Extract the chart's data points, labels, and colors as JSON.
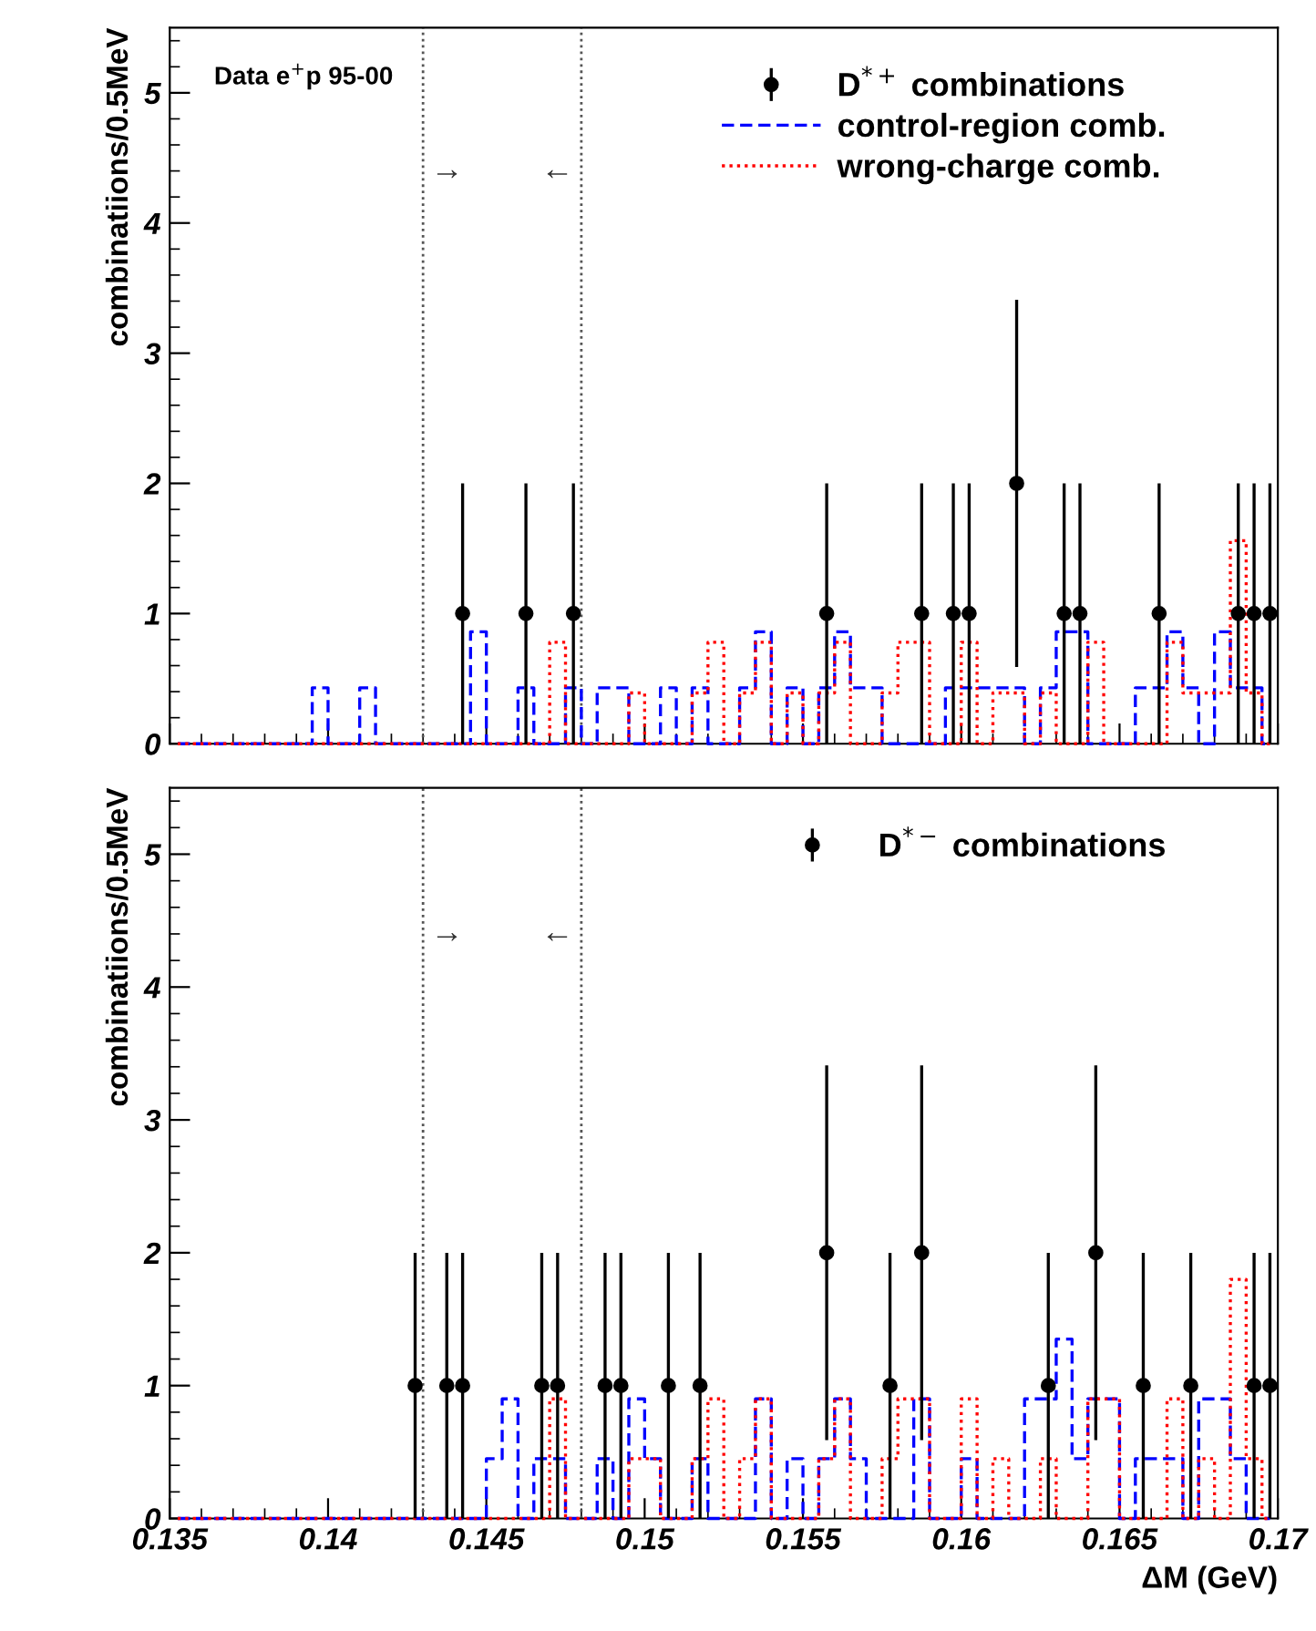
{
  "chart_data": [
    {
      "type": "step",
      "ylabel": "combinatiions/0.5MeV",
      "tick_labels": "y",
      "legend": "top right",
      "grid": false,
      "xlim": [
        0.135,
        0.17
      ],
      "xticks": [
        0.135,
        0.14,
        0.145,
        0.15,
        0.155,
        0.16,
        0.165,
        0.17
      ],
      "ylim": [
        0,
        5.5
      ],
      "yticks": [
        0,
        1,
        2,
        3,
        4,
        5
      ],
      "x": [
        0.13525,
        0.13575,
        0.13625,
        0.13675,
        0.13725,
        0.13775,
        0.13825,
        0.13875,
        0.13925,
        0.13975,
        0.14025,
        0.14075,
        0.14125,
        0.14175,
        0.14225,
        0.14275,
        0.14325,
        0.14375,
        0.14425,
        0.14475,
        0.14525,
        0.14575,
        0.14625,
        0.14675,
        0.14725,
        0.14775,
        0.14825,
        0.14875,
        0.14925,
        0.14975,
        0.15025,
        0.15075,
        0.15125,
        0.15175,
        0.15225,
        0.15275,
        0.15325,
        0.15375,
        0.15425,
        0.15475,
        0.15525,
        0.15575,
        0.15625,
        0.15675,
        0.15725,
        0.15775,
        0.15825,
        0.15875,
        0.15925,
        0.15975,
        0.16025,
        0.16075,
        0.16125,
        0.16175,
        0.16225,
        0.16275,
        0.16325,
        0.16375,
        0.16425,
        0.16475,
        0.16525,
        0.16575,
        0.16625,
        0.16675,
        0.16725,
        0.16775,
        0.16825,
        0.16875,
        0.16925,
        0.16975
      ],
      "series": [
        {
          "name": "D$^{*+}$ combinations",
          "type": "scatter",
          "color": "#000000",
          "marker": "circle",
          "x": [
            0.14425,
            0.14625,
            0.14775,
            0.15575,
            0.15875,
            0.15975,
            0.16025,
            0.16175,
            0.16325,
            0.16375,
            0.16625,
            0.16875,
            0.16925,
            0.16975
          ],
          "values": [
            1,
            1,
            1,
            1,
            1,
            1,
            1,
            2,
            1,
            1,
            1,
            1,
            1,
            1
          ],
          "errors": [
            1,
            1,
            1,
            1,
            1,
            1,
            1,
            1.41,
            1,
            1,
            1,
            1,
            1,
            1
          ]
        },
        {
          "name": "control-region comb.",
          "color": "#0000ff",
          "line_style": "dashed",
          "values": [
            0,
            0,
            0,
            0,
            0,
            0,
            0,
            0,
            0,
            0.43,
            0,
            0,
            0.43,
            0,
            0,
            0,
            0,
            0,
            0,
            0.86,
            0,
            0,
            0.43,
            0,
            0,
            0.43,
            0,
            0.43,
            0.43,
            0,
            0,
            0.43,
            0,
            0.43,
            0,
            0,
            0.43,
            0.86,
            0,
            0.43,
            0,
            0.43,
            0.86,
            0.43,
            0.43,
            0,
            0,
            0,
            0,
            0.43,
            0.43,
            0.43,
            0.43,
            0.43,
            0,
            0.43,
            0.86,
            0.86,
            0,
            0,
            0,
            0.43,
            0.43,
            0.86,
            0.43,
            0,
            0.86,
            0.43,
            0.43,
            0
          ]
        },
        {
          "name": "wrong-charge comb.",
          "color": "#ff0000",
          "line_style": "dotted",
          "values": [
            0,
            0,
            0,
            0,
            0,
            0,
            0,
            0,
            0,
            0,
            0,
            0,
            0,
            0,
            0,
            0,
            0,
            0,
            0,
            0,
            0,
            0,
            0,
            0,
            0.78,
            0,
            0,
            0,
            0,
            0.39,
            0,
            0,
            0,
            0.39,
            0.78,
            0,
            0.39,
            0.78,
            0,
            0.39,
            0,
            0.39,
            0.78,
            0,
            0,
            0.39,
            0.78,
            0.78,
            0,
            0,
            0.78,
            0,
            0.39,
            0.39,
            0,
            0.39,
            0,
            0,
            0.78,
            0,
            0,
            0,
            0,
            0.78,
            0.39,
            0.39,
            0.39,
            1.56,
            0.39,
            0
          ]
        }
      ],
      "ref_lines": [
        {
          "axis": "x",
          "value": 0.143,
          "color": "#555555",
          "line_style": "dotted"
        },
        {
          "axis": "x",
          "value": 0.148,
          "color": "#555555",
          "line_style": "dotted"
        }
      ],
      "annotations": [
        "Data e$^{+}$p 95-00",
        "→",
        "←"
      ]
    },
    {
      "type": "step",
      "ylabel": "combinatiions/0.5MeV",
      "xlabel": "ΔM (GeV)",
      "legend": "top right",
      "grid": false,
      "xlim": [
        0.135,
        0.17
      ],
      "xticks": [
        0.135,
        0.14,
        0.145,
        0.15,
        0.155,
        0.16,
        0.165,
        0.17
      ],
      "ylim": [
        0,
        5.5
      ],
      "yticks": [
        0,
        1,
        2,
        3,
        4,
        5
      ],
      "x": [
        0.13525,
        0.13575,
        0.13625,
        0.13675,
        0.13725,
        0.13775,
        0.13825,
        0.13875,
        0.13925,
        0.13975,
        0.14025,
        0.14075,
        0.14125,
        0.14175,
        0.14225,
        0.14275,
        0.14325,
        0.14375,
        0.14425,
        0.14475,
        0.14525,
        0.14575,
        0.14625,
        0.14675,
        0.14725,
        0.14775,
        0.14825,
        0.14875,
        0.14925,
        0.14975,
        0.15025,
        0.15075,
        0.15125,
        0.15175,
        0.15225,
        0.15275,
        0.15325,
        0.15375,
        0.15425,
        0.15475,
        0.15525,
        0.15575,
        0.15625,
        0.15675,
        0.15725,
        0.15775,
        0.15825,
        0.15875,
        0.15925,
        0.15975,
        0.16025,
        0.16075,
        0.16125,
        0.16175,
        0.16225,
        0.16275,
        0.16325,
        0.16375,
        0.16425,
        0.16475,
        0.16525,
        0.16575,
        0.16625,
        0.16675,
        0.16725,
        0.16775,
        0.16825,
        0.16875,
        0.16925,
        0.16975
      ],
      "series": [
        {
          "name": "D$^{*−}$ combinations",
          "type": "scatter",
          "color": "#000000",
          "marker": "circle",
          "x": [
            0.14275,
            0.14375,
            0.14425,
            0.14675,
            0.14725,
            0.14875,
            0.14925,
            0.15075,
            0.15175,
            0.15575,
            0.15775,
            0.15875,
            0.16275,
            0.16425,
            0.16575,
            0.16725,
            0.16925,
            0.16975
          ],
          "values": [
            1,
            1,
            1,
            1,
            1,
            1,
            1,
            1,
            1,
            2,
            1,
            2,
            1,
            2,
            1,
            1,
            1,
            1
          ],
          "errors": [
            1,
            1,
            1,
            1,
            1,
            1,
            1,
            1,
            1,
            1.41,
            1,
            1.41,
            1,
            1.41,
            1,
            1,
            1,
            1
          ]
        },
        {
          "color": "#0000ff",
          "line_style": "dashed",
          "values": [
            0,
            0,
            0,
            0,
            0,
            0,
            0,
            0,
            0,
            0,
            0,
            0,
            0,
            0,
            0,
            0,
            0,
            0,
            0,
            0,
            0.45,
            0.9,
            0,
            0.45,
            0.45,
            0,
            0,
            0.45,
            0,
            0.9,
            0.45,
            0,
            0,
            0.45,
            0,
            0,
            0,
            0.9,
            0,
            0.45,
            0,
            0.45,
            0.9,
            0.45,
            0,
            0,
            0,
            0.9,
            0,
            0,
            0.45,
            0,
            0,
            0,
            0.9,
            0.9,
            1.35,
            0.45,
            0.9,
            0.9,
            0,
            0.45,
            0.45,
            0.45,
            0,
            0.9,
            0.9,
            0.45,
            0,
            0
          ]
        },
        {
          "color": "#ff0000",
          "line_style": "dotted",
          "values": [
            0,
            0,
            0,
            0,
            0,
            0,
            0,
            0,
            0,
            0,
            0,
            0,
            0,
            0,
            0,
            0,
            0,
            0,
            0,
            0,
            0,
            0,
            0,
            0,
            0.9,
            0,
            0,
            0,
            0,
            0.45,
            0.45,
            0,
            0,
            0.45,
            0.9,
            0,
            0.45,
            0.9,
            0,
            0,
            0,
            0.45,
            0.9,
            0,
            0,
            0.45,
            0.9,
            0.9,
            0,
            0,
            0.9,
            0,
            0.45,
            0,
            0,
            0.45,
            0,
            0,
            0.9,
            0.9,
            0,
            0,
            0,
            0.9,
            0,
            0.45,
            0,
            1.8,
            0.45,
            0
          ]
        }
      ],
      "ref_lines": [
        {
          "axis": "x",
          "value": 0.143,
          "color": "#555555",
          "line_style": "dotted"
        },
        {
          "axis": "x",
          "value": 0.148,
          "color": "#555555",
          "line_style": "dotted"
        }
      ],
      "annotations": [
        "→",
        "←"
      ]
    }
  ]
}
